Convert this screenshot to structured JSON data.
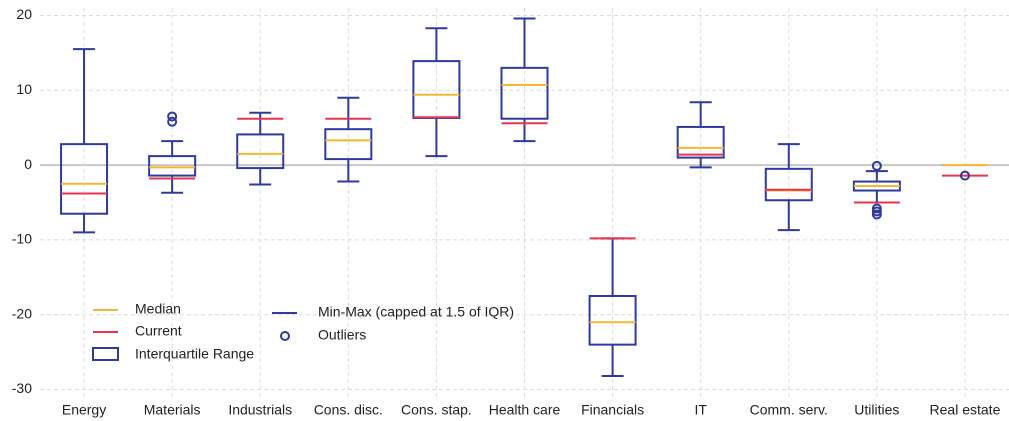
{
  "chart_data": {
    "type": "box",
    "categories": [
      "Energy",
      "Materials",
      "Industrials",
      "Cons. disc.",
      "Cons. stap.",
      "Health care",
      "Financials",
      "IT",
      "Comm. serv.",
      "Utilities",
      "Real estate"
    ],
    "min": [
      -9,
      -3.7,
      -2.6,
      -2.2,
      1.2,
      3.2,
      -28.2,
      -0.3,
      -8.7,
      -5,
      null
    ],
    "q1": [
      -6.5,
      -1.4,
      -0.4,
      0.8,
      6.3,
      6.2,
      -24,
      1,
      -4.7,
      -3.4,
      null
    ],
    "median": [
      -2.5,
      -0.3,
      1.5,
      3.3,
      9.4,
      10.7,
      -21,
      2.3,
      -3.4,
      -2.8,
      0
    ],
    "q3": [
      2.8,
      1.2,
      4.1,
      4.8,
      13.9,
      13,
      -17.5,
      5.1,
      -0.5,
      -2.2,
      null
    ],
    "max": [
      15.5,
      3.2,
      7,
      9,
      18.3,
      19.6,
      -9.8,
      8.4,
      2.8,
      -0.8,
      null
    ],
    "current": [
      -3.8,
      -1.8,
      6.2,
      6.2,
      6.4,
      5.6,
      -9.8,
      1.4,
      -3.3,
      -5,
      -1.4
    ],
    "outliers": [
      [],
      [
        5.8,
        6.5
      ],
      [],
      [],
      [],
      [],
      [],
      [],
      [],
      [
        -0.1,
        -5.8,
        -6.2,
        -6.6
      ],
      [
        -1.4
      ]
    ],
    "colors": {
      "box": "#2e3a9c",
      "median": "#f5b731",
      "current": "#e8344e"
    },
    "ylim": [
      -31,
      21
    ],
    "yticks": [
      20,
      10,
      0,
      -10,
      -20,
      -30
    ],
    "grid": true,
    "legend": {
      "median": "Median",
      "current": "Current",
      "box": "Interquartile Range",
      "whisker": "Min-Max (capped at 1.5 of IQR)",
      "outlier": "Outliers"
    },
    "legend_position": "lower left"
  }
}
